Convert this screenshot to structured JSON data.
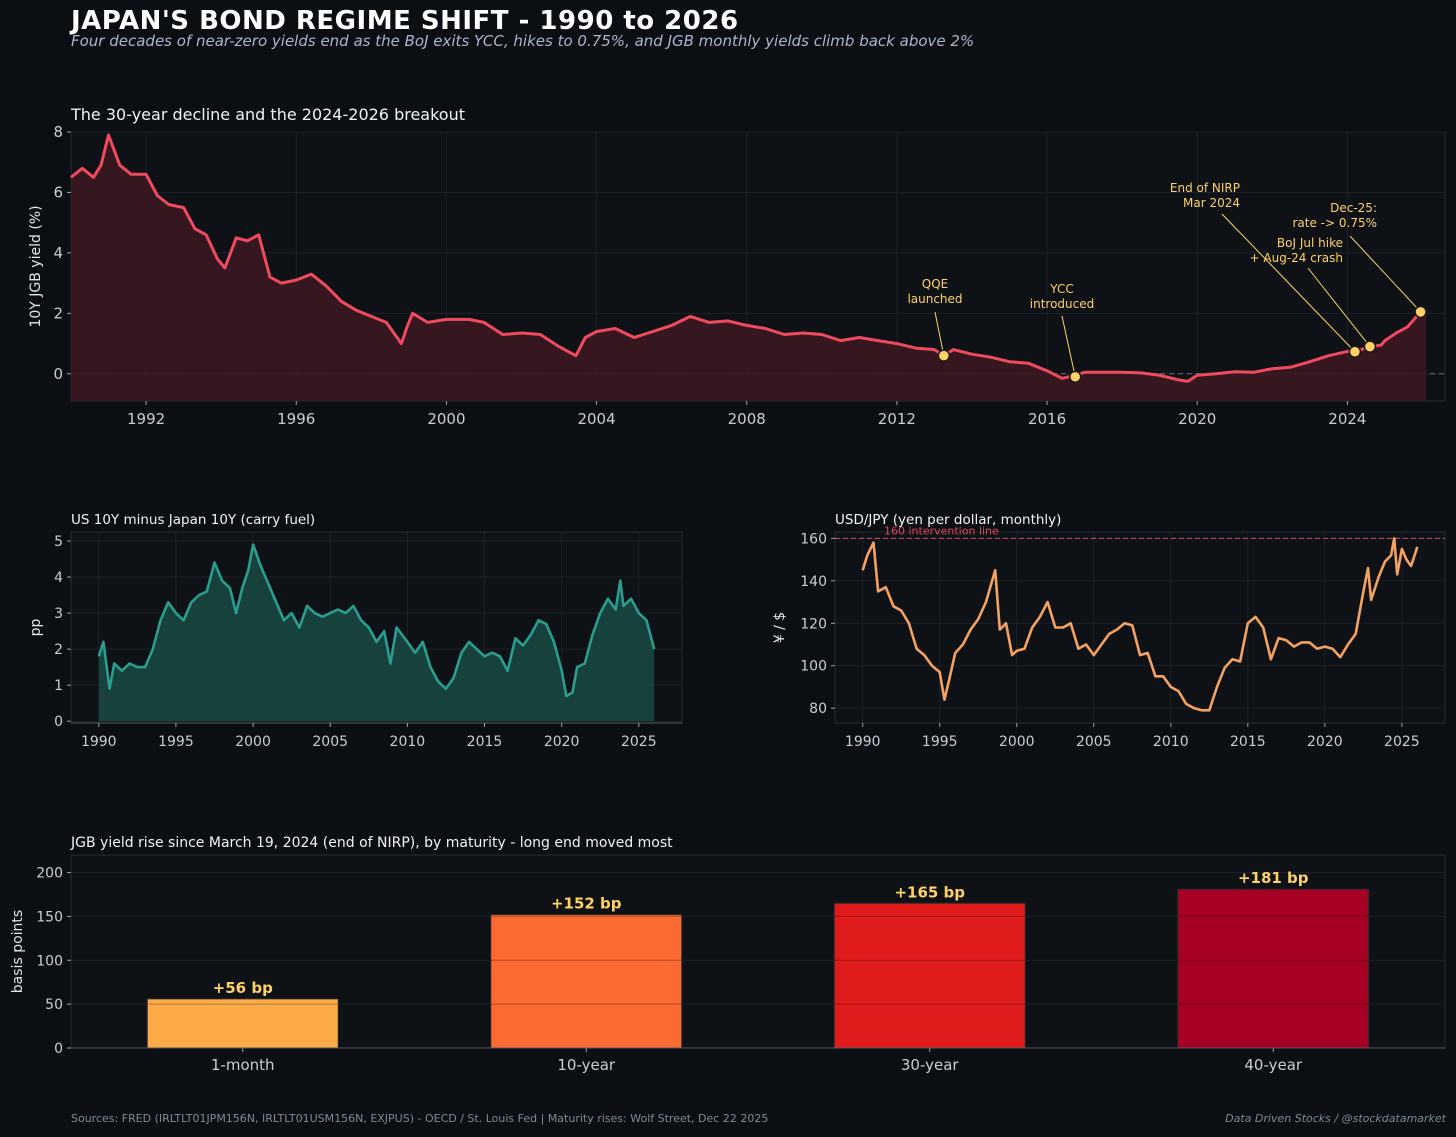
{
  "header": {
    "title": "JAPAN'S BOND REGIME SHIFT  -  1990 to 2026",
    "subtitle": "Four decades of near-zero yields end as the BoJ exits YCC, hikes to 0.75%, and JGB monthly yields climb back above 2%"
  },
  "footer": {
    "sources": "Sources: FRED (IRLTLT01JPM156N, IRLTLT01USM156N, EXJPUS) - OECD / St. Louis Fed  |  Maturity rises: Wolf Street, Dec 22 2025",
    "credit": "Data Driven Stocks / @stockdatamarket"
  },
  "colors": {
    "background": "#0b0e13",
    "panel": "#0e1217",
    "jgb_line": "#f04a5e",
    "jgb_fill": "#3a1820",
    "spread_line": "#2a9d8f",
    "spread_fill": "#18443f",
    "usdjpy_line": "#f4a261",
    "annotation": "#ffd166",
    "intervention": "#d9485b"
  },
  "chart_data": [
    {
      "id": "jgb10y",
      "type": "area",
      "title": "The 30-year decline and the 2024-2026 breakout",
      "xlabel": "",
      "ylabel": "10Y JGB yield (%)",
      "xlim": [
        1990,
        2026.6
      ],
      "ylim": [
        -0.9,
        8
      ],
      "xticks": [
        1992,
        1996,
        2000,
        2004,
        2008,
        2012,
        2016,
        2020,
        2024
      ],
      "yticks": [
        0,
        2,
        4,
        6,
        8
      ],
      "x": [
        1990.0,
        1990.3,
        1990.6,
        1990.8,
        1991.0,
        1991.3,
        1991.6,
        1992.0,
        1992.3,
        1992.6,
        1993.0,
        1993.3,
        1993.6,
        1993.9,
        1994.1,
        1994.4,
        1994.7,
        1995.0,
        1995.3,
        1995.6,
        1996.0,
        1996.4,
        1996.8,
        1997.2,
        1997.6,
        1998.0,
        1998.4,
        1998.8,
        1998.95,
        1999.1,
        1999.5,
        2000.0,
        2000.6,
        2001.0,
        2001.5,
        2002.0,
        2002.5,
        2003.0,
        2003.45,
        2003.7,
        2004.0,
        2004.5,
        2005.0,
        2005.5,
        2006.0,
        2006.5,
        2007.0,
        2007.5,
        2008.0,
        2008.5,
        2009.0,
        2009.5,
        2010.0,
        2010.5,
        2011.0,
        2011.5,
        2012.0,
        2012.5,
        2013.0,
        2013.25,
        2013.5,
        2014.0,
        2014.5,
        2015.0,
        2015.5,
        2016.0,
        2016.4,
        2016.75,
        2017.0,
        2017.5,
        2018.0,
        2018.5,
        2019.0,
        2019.5,
        2019.75,
        2020.0,
        2020.5,
        2021.0,
        2021.5,
        2022.0,
        2022.5,
        2023.0,
        2023.5,
        2024.0,
        2024.2,
        2024.6,
        2024.9,
        2025.0,
        2025.3,
        2025.6,
        2025.95,
        2026.1
      ],
      "values": [
        6.5,
        6.8,
        6.5,
        6.9,
        7.9,
        6.9,
        6.6,
        6.6,
        5.9,
        5.6,
        5.5,
        4.8,
        4.6,
        3.8,
        3.5,
        4.5,
        4.4,
        4.6,
        3.2,
        3.0,
        3.1,
        3.3,
        2.9,
        2.4,
        2.1,
        1.9,
        1.7,
        1.0,
        1.55,
        2.0,
        1.7,
        1.8,
        1.8,
        1.7,
        1.3,
        1.35,
        1.3,
        0.9,
        0.6,
        1.2,
        1.4,
        1.5,
        1.2,
        1.4,
        1.6,
        1.9,
        1.7,
        1.75,
        1.6,
        1.5,
        1.3,
        1.35,
        1.3,
        1.1,
        1.2,
        1.1,
        1.0,
        0.85,
        0.8,
        0.6,
        0.8,
        0.65,
        0.55,
        0.4,
        0.35,
        0.1,
        -0.15,
        -0.05,
        0.05,
        0.05,
        0.05,
        0.03,
        -0.05,
        -0.2,
        -0.25,
        -0.05,
        0.0,
        0.07,
        0.05,
        0.17,
        0.22,
        0.4,
        0.6,
        0.74,
        0.73,
        0.9,
        0.95,
        1.1,
        1.35,
        1.55,
        2.05,
        2.1
      ],
      "annotations": [
        {
          "label_lines": [
            "QQE",
            "launched"
          ],
          "x": 2013.25,
          "y": 0.6
        },
        {
          "label_lines": [
            "YCC",
            "introduced"
          ],
          "x": 2016.75,
          "y": -0.1
        },
        {
          "label_lines": [
            "End of NIRP",
            "Mar 2024"
          ],
          "x": 2024.2,
          "y": 0.73
        },
        {
          "label_lines": [
            "BoJ Jul hike",
            "+ Aug-24 crash"
          ],
          "x": 2024.6,
          "y": 0.9
        },
        {
          "label_lines": [
            "Dec-25:",
            "rate -> 0.75%"
          ],
          "x": 2025.95,
          "y": 2.05
        }
      ]
    },
    {
      "id": "spread",
      "type": "area",
      "title": "US 10Y minus Japan 10Y (carry fuel)",
      "xlabel": "",
      "ylabel": "pp",
      "xlim": [
        1988.2,
        2027.8
      ],
      "ylim": [
        -0.05,
        5.25
      ],
      "xticks": [
        1990,
        1995,
        2000,
        2005,
        2010,
        2015,
        2020,
        2025
      ],
      "yticks": [
        0,
        1,
        2,
        3,
        4,
        5
      ],
      "x": [
        1990.0,
        1990.3,
        1990.7,
        1991.0,
        1991.5,
        1992.0,
        1992.5,
        1993.0,
        1993.5,
        1994.0,
        1994.5,
        1995.0,
        1995.5,
        1996.0,
        1996.5,
        1997.0,
        1997.5,
        1998.0,
        1998.5,
        1998.9,
        1999.3,
        1999.7,
        2000.0,
        2000.5,
        2001.0,
        2001.5,
        2002.0,
        2002.5,
        2003.0,
        2003.5,
        2004.0,
        2004.5,
        2005.0,
        2005.5,
        2006.0,
        2006.5,
        2007.0,
        2007.5,
        2008.0,
        2008.5,
        2008.9,
        2009.3,
        2010.0,
        2010.5,
        2011.0,
        2011.5,
        2012.0,
        2012.5,
        2013.0,
        2013.5,
        2014.0,
        2014.5,
        2015.0,
        2015.5,
        2016.0,
        2016.5,
        2017.0,
        2017.5,
        2018.0,
        2018.5,
        2019.0,
        2019.5,
        2020.0,
        2020.3,
        2020.7,
        2021.0,
        2021.5,
        2022.0,
        2022.5,
        2023.0,
        2023.5,
        2023.8,
        2024.0,
        2024.5,
        2025.0,
        2025.5,
        2026.0
      ],
      "values": [
        1.8,
        2.2,
        0.9,
        1.6,
        1.4,
        1.6,
        1.5,
        1.5,
        2.0,
        2.8,
        3.3,
        3.0,
        2.8,
        3.3,
        3.5,
        3.6,
        4.4,
        3.9,
        3.7,
        3.0,
        3.7,
        4.2,
        4.9,
        4.3,
        3.8,
        3.3,
        2.8,
        3.0,
        2.6,
        3.2,
        3.0,
        2.9,
        3.0,
        3.1,
        3.0,
        3.2,
        2.8,
        2.6,
        2.2,
        2.5,
        1.6,
        2.6,
        2.2,
        1.9,
        2.2,
        1.5,
        1.1,
        0.9,
        1.2,
        1.9,
        2.2,
        2.0,
        1.8,
        1.9,
        1.8,
        1.4,
        2.3,
        2.1,
        2.4,
        2.8,
        2.7,
        2.2,
        1.4,
        0.7,
        0.8,
        1.5,
        1.6,
        2.4,
        3.0,
        3.4,
        3.1,
        3.9,
        3.2,
        3.4,
        3.0,
        2.8,
        2.0
      ]
    },
    {
      "id": "usdjpy",
      "type": "line",
      "title": "USD/JPY (yen per dollar, monthly)",
      "xlabel": "",
      "ylabel": "¥ / $",
      "xlim": [
        1988.2,
        2027.8
      ],
      "ylim": [
        73,
        163
      ],
      "xticks": [
        1990,
        1995,
        2000,
        2005,
        2010,
        2015,
        2020,
        2025
      ],
      "yticks": [
        80,
        100,
        120,
        140,
        160
      ],
      "reference_line": {
        "value": 160,
        "label": "160 intervention line"
      },
      "x": [
        1990.0,
        1990.3,
        1990.7,
        1991.0,
        1991.5,
        1992.0,
        1992.5,
        1993.0,
        1993.5,
        1994.0,
        1994.5,
        1995.0,
        1995.3,
        1995.6,
        1996.0,
        1996.5,
        1997.0,
        1997.5,
        1998.0,
        1998.6,
        1998.9,
        1999.3,
        1999.7,
        2000.0,
        2000.5,
        2001.0,
        2001.5,
        2002.0,
        2002.5,
        2003.0,
        2003.5,
        2004.0,
        2004.5,
        2005.0,
        2005.5,
        2006.0,
        2006.5,
        2007.0,
        2007.5,
        2008.0,
        2008.5,
        2009.0,
        2009.5,
        2010.0,
        2010.5,
        2011.0,
        2011.5,
        2012.0,
        2012.5,
        2013.0,
        2013.5,
        2014.0,
        2014.5,
        2015.0,
        2015.5,
        2016.0,
        2016.5,
        2017.0,
        2017.5,
        2018.0,
        2018.5,
        2019.0,
        2019.5,
        2020.0,
        2020.5,
        2021.0,
        2021.5,
        2022.0,
        2022.5,
        2022.8,
        2023.0,
        2023.5,
        2023.9,
        2024.3,
        2024.5,
        2024.7,
        2025.0,
        2025.3,
        2025.6,
        2026.0
      ],
      "values": [
        145,
        152,
        158,
        135,
        137,
        128,
        126,
        120,
        108,
        105,
        100,
        97,
        84,
        93,
        106,
        110,
        117,
        122,
        130,
        145,
        117,
        120,
        105,
        107,
        108,
        118,
        123,
        130,
        118,
        118,
        120,
        108,
        110,
        105,
        110,
        115,
        117,
        120,
        119,
        105,
        106,
        95,
        95,
        90,
        88,
        82,
        80,
        79,
        79,
        90,
        99,
        103,
        102,
        120,
        123,
        118,
        103,
        113,
        112,
        109,
        111,
        111,
        108,
        109,
        108,
        104,
        110,
        115,
        135,
        146,
        131,
        142,
        149,
        152,
        160,
        143,
        155,
        150,
        147,
        156
      ]
    },
    {
      "id": "maturity_rise",
      "type": "bar",
      "title": "JGB yield rise since March 19, 2024 (end of NIRP), by maturity  -  long end moved most",
      "xlabel": "",
      "ylabel": "basis points",
      "ylim": [
        0,
        220
      ],
      "yticks": [
        0,
        50,
        100,
        150,
        200
      ],
      "categories": [
        "1-month",
        "10-year",
        "30-year",
        "40-year"
      ],
      "values": [
        56,
        152,
        165,
        181
      ],
      "labels": [
        "+56 bp",
        "+152 bp",
        "+165 bp",
        "+181 bp"
      ],
      "colors": [
        "#fdab48",
        "#fb6a30",
        "#e01b1c",
        "#a60025"
      ]
    }
  ]
}
